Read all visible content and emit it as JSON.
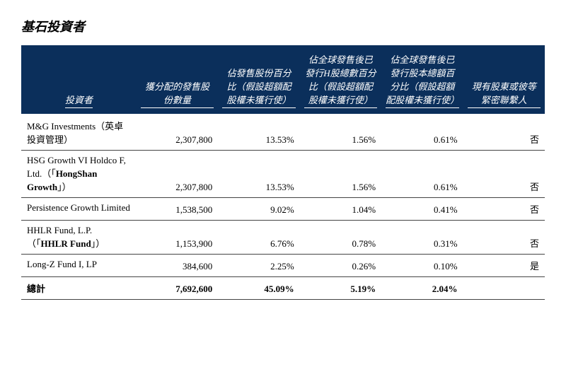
{
  "title": "基石投資者",
  "table": {
    "headers": {
      "c1": "投資者",
      "c2": "獲分配的發售股份數量",
      "c3": "佔發售股份百分比（假設超額配股權未獲行使）",
      "c4": "佔全球發售後已發行H股總數百分比（假設超額配股權未獲行使）",
      "c5": "佔全球發售後已發行股本總額百分比（假設超額配股權未獲行使）",
      "c6": "現有股東或彼等緊密聯繫人"
    },
    "rows": [
      {
        "name_pre": "M&G Investments（英卓投資管理）",
        "name_bold": "",
        "name_post": "",
        "shares": "2,307,800",
        "pct_offer": "13.53%",
        "pct_h": "1.56%",
        "pct_total": "0.61%",
        "existing": "否"
      },
      {
        "name_pre": "HSG Growth VI Holdco F, Ltd.（「",
        "name_bold": "HongShan Growth",
        "name_post": "」）",
        "shares": "2,307,800",
        "pct_offer": "13.53%",
        "pct_h": "1.56%",
        "pct_total": "0.61%",
        "existing": "否"
      },
      {
        "name_pre": "Persistence Growth Limited",
        "name_bold": "",
        "name_post": "",
        "shares": "1,538,500",
        "pct_offer": "9.02%",
        "pct_h": "1.04%",
        "pct_total": "0.41%",
        "existing": "否"
      },
      {
        "name_pre": "HHLR Fund, L.P.（「",
        "name_bold": "HHLR Fund",
        "name_post": "」）",
        "shares": "1,153,900",
        "pct_offer": "6.76%",
        "pct_h": "0.78%",
        "pct_total": "0.31%",
        "existing": "否"
      },
      {
        "name_pre": "Long-Z Fund I, LP",
        "name_bold": "",
        "name_post": "",
        "shares": "384,600",
        "pct_offer": "2.25%",
        "pct_h": "0.26%",
        "pct_total": "0.10%",
        "existing": "是"
      }
    ],
    "total": {
      "label": "總計",
      "shares": "7,692,600",
      "pct_offer": "45.09%",
      "pct_h": "5.19%",
      "pct_total": "2.04%",
      "existing": ""
    }
  },
  "style": {
    "header_bg": "#0b2f5b",
    "header_fg": "#ffffff",
    "body_fontsize": 13,
    "title_fontsize": 18
  }
}
